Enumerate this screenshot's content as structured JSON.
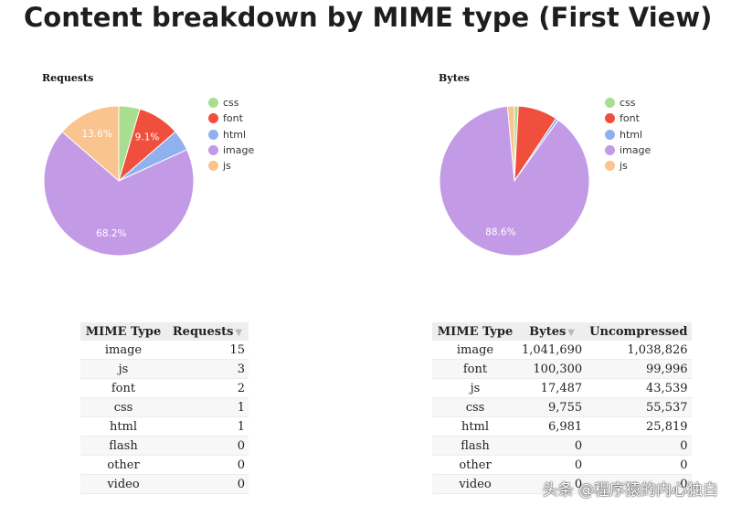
{
  "page": {
    "title": "Content breakdown by MIME type (First View)"
  },
  "chart_data": [
    {
      "type": "pie",
      "title": "Requests",
      "categories": [
        "css",
        "font",
        "html",
        "image",
        "js"
      ],
      "values": [
        1,
        2,
        1,
        15,
        3
      ],
      "slice_labels": [
        "",
        "9.1%",
        "",
        "68.2%",
        "13.6%"
      ],
      "colors": [
        "#a8de8f",
        "#ef4f3c",
        "#8fb1ee",
        "#c39ae6",
        "#f9c48d"
      ],
      "legend": {
        "position": "right",
        "entries": [
          "css",
          "font",
          "html",
          "image",
          "js"
        ]
      }
    },
    {
      "type": "pie",
      "title": "Bytes",
      "categories": [
        "css",
        "font",
        "html",
        "image",
        "js"
      ],
      "values": [
        9755,
        100300,
        6981,
        1041690,
        17487
      ],
      "slice_labels": [
        "",
        "",
        "",
        "88.6%",
        ""
      ],
      "colors": [
        "#a8de8f",
        "#ef4f3c",
        "#8fb1ee",
        "#c39ae6",
        "#f9c48d"
      ],
      "legend": {
        "position": "right",
        "entries": [
          "css",
          "font",
          "html",
          "image",
          "js"
        ]
      }
    }
  ],
  "requests_table": {
    "headers": [
      "MIME Type",
      "Requests"
    ],
    "rows": [
      [
        "image",
        "15"
      ],
      [
        "js",
        "3"
      ],
      [
        "font",
        "2"
      ],
      [
        "css",
        "1"
      ],
      [
        "html",
        "1"
      ],
      [
        "flash",
        "0"
      ],
      [
        "other",
        "0"
      ],
      [
        "video",
        "0"
      ]
    ]
  },
  "bytes_table": {
    "headers": [
      "MIME Type",
      "Bytes",
      "Uncompressed"
    ],
    "rows": [
      [
        "image",
        "1,041,690",
        "1,038,826"
      ],
      [
        "font",
        "100,300",
        "99,996"
      ],
      [
        "js",
        "17,487",
        "43,539"
      ],
      [
        "css",
        "9,755",
        "55,537"
      ],
      [
        "html",
        "6,981",
        "25,819"
      ],
      [
        "flash",
        "0",
        "0"
      ],
      [
        "other",
        "0",
        "0"
      ],
      [
        "video",
        "0",
        "0"
      ]
    ]
  },
  "watermark": {
    "text": "头条 @程序猿的内心独白"
  }
}
